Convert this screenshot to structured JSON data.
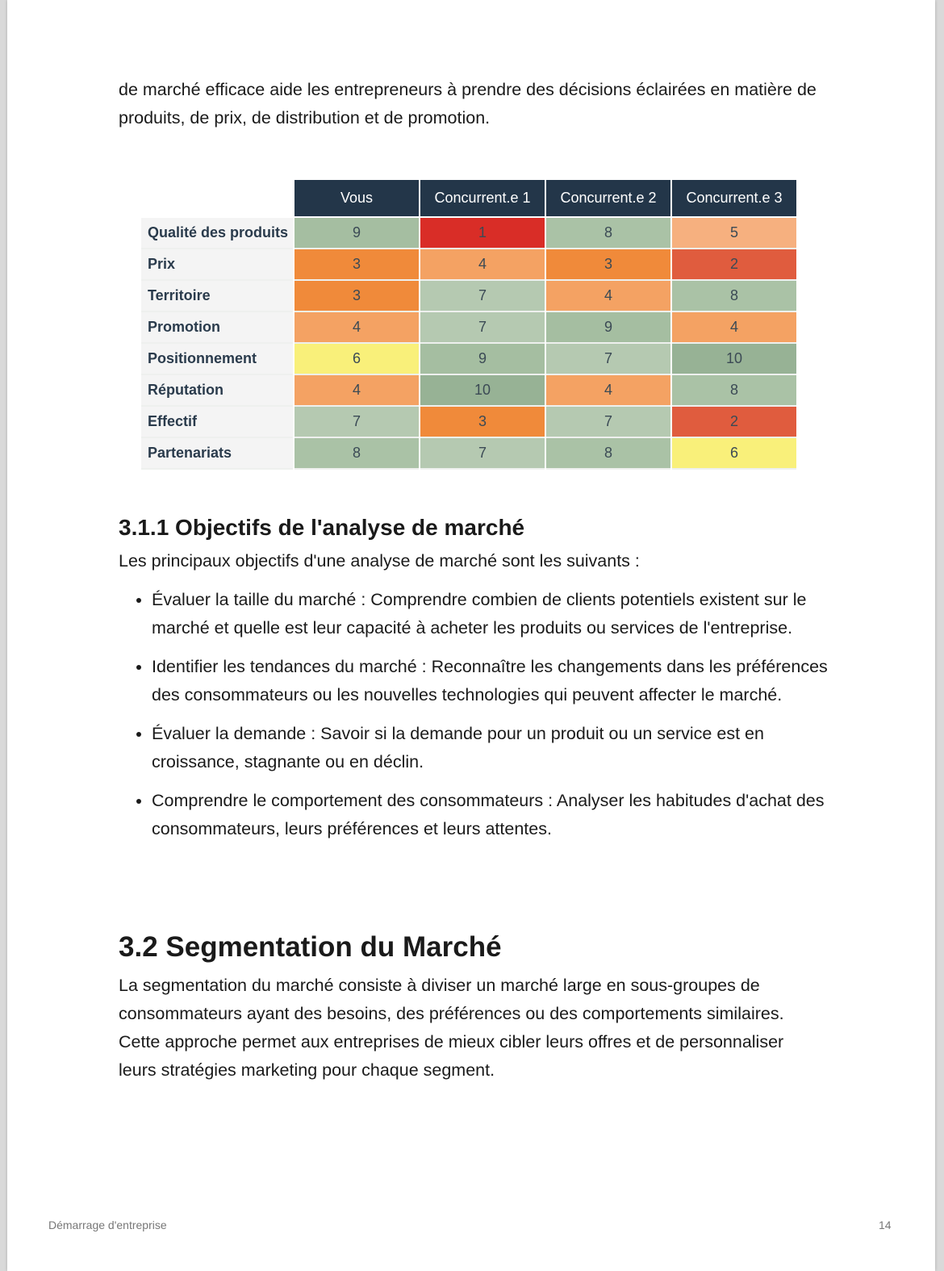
{
  "intro_text": "de marché efficace aide les entrepreneurs à prendre des décisions éclairées en matière de produits, de prix, de distribution et de promotion.",
  "table": {
    "headers": [
      "Vous",
      "Concurrent.e 1",
      "Concurrent.e 2",
      "Concurrent.e 3"
    ],
    "rows": [
      {
        "label": "Qualité des produits",
        "values": [
          9,
          1,
          8,
          5
        ]
      },
      {
        "label": "Prix",
        "values": [
          3,
          4,
          3,
          2
        ]
      },
      {
        "label": "Territoire",
        "values": [
          3,
          7,
          4,
          8
        ]
      },
      {
        "label": "Promotion",
        "values": [
          4,
          7,
          9,
          4
        ]
      },
      {
        "label": "Positionnement",
        "values": [
          6,
          9,
          7,
          10
        ]
      },
      {
        "label": "Réputation",
        "values": [
          4,
          10,
          4,
          8
        ]
      },
      {
        "label": "Effectif",
        "values": [
          7,
          3,
          7,
          2
        ]
      },
      {
        "label": "Partenariats",
        "values": [
          8,
          7,
          8,
          6
        ]
      }
    ],
    "scale_colors": {
      "1": "#d92d27",
      "2": "#e05c3e",
      "3": "#f08a3a",
      "4": "#f4a263",
      "5": "#f6b07f",
      "6": "#f9f07a",
      "7": "#b5c9b1",
      "8": "#aac2a6",
      "9": "#a5bea1",
      "10": "#97b295"
    },
    "header_color": "#233649"
  },
  "section_311": {
    "title": "3.1.1 Objectifs de l'analyse de marché",
    "intro": "Les principaux objectifs d'une analyse de marché sont les suivants :",
    "bullets": [
      "Évaluer la taille du marché : Comprendre combien de clients potentiels existent sur le marché et quelle est leur capacité à acheter les produits ou services de l'entreprise.",
      "Identifier les tendances du marché : Reconnaître les changements dans les préférences des consommateurs ou les nouvelles technologies qui peuvent affecter le marché.",
      "Évaluer la demande : Savoir si la demande pour un produit ou un service est en croissance, stagnante ou en déclin.",
      "Comprendre le comportement des consommateurs : Analyser les habitudes d'achat des consommateurs, leurs préférences et leurs attentes."
    ]
  },
  "section_32": {
    "title": "3.2 Segmentation du Marché",
    "text": "La segmentation du marché consiste à diviser un marché large en sous-groupes de consommateurs ayant des besoins, des préférences ou des comportements similaires. Cette approche permet aux entreprises de mieux cibler leurs offres et de personnaliser leurs stratégies marketing pour chaque segment."
  },
  "footer": {
    "title": "Démarrage d'entreprise",
    "page_number": "14"
  }
}
